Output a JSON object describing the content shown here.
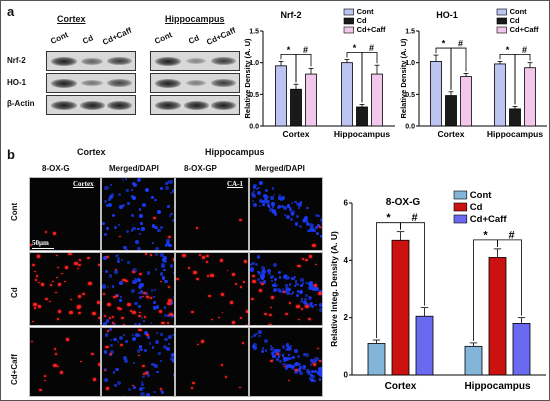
{
  "panel_a": {
    "letter": "a",
    "cortex_header": "Cortex",
    "hippocampus_header": "Hippocampus",
    "lane_labels": [
      "Cont",
      "Cd",
      "Cd+Caff"
    ],
    "blot_rows": [
      "Nrf-2",
      "HO-1",
      "β-Actin"
    ]
  },
  "panel_b": {
    "letter": "b",
    "cortex_header": "Cortex",
    "hippocampus_header": "Hippocampus",
    "column_labels": [
      "8-OX-G",
      "Merged/DAPI",
      "8-OX-GP",
      "Merged/DAPI"
    ],
    "row_labels": [
      "Cont",
      "Cd",
      "Cd+Caff"
    ],
    "region_tag_cortex": "Cortex",
    "region_tag_ca1": "CA-1",
    "scale_label": "50μm"
  },
  "chart_data": [
    {
      "type": "bar",
      "title": "Nrf-2",
      "ylabel": "Relative Density (A. U)",
      "categories": [
        "Cortex",
        "Hippocampus"
      ],
      "ylim": [
        0,
        1.5
      ],
      "yticks": [
        "0.0",
        "0.5",
        "1.0",
        "1.5"
      ],
      "series": [
        {
          "name": "Cont",
          "values": [
            0.95,
            1.0
          ],
          "errors": [
            0.07,
            0.05
          ]
        },
        {
          "name": "Cd",
          "values": [
            0.58,
            0.3
          ],
          "errors": [
            0.08,
            0.04
          ]
        },
        {
          "name": "Cd+Caff",
          "values": [
            0.82,
            0.82
          ],
          "errors": [
            0.09,
            0.14
          ]
        }
      ],
      "significance": [
        "*",
        "#"
      ],
      "legend_position": "top-right"
    },
    {
      "type": "bar",
      "title": "HO-1",
      "ylabel": "Relative Density (A. U)",
      "categories": [
        "Cortex",
        "Hippocampus"
      ],
      "ylim": [
        0,
        1.5
      ],
      "yticks": [
        "0.0",
        "0.5",
        "1.0",
        "1.5"
      ],
      "series": [
        {
          "name": "Cont",
          "values": [
            1.02,
            0.98
          ],
          "errors": [
            0.1,
            0.04
          ]
        },
        {
          "name": "Cd",
          "values": [
            0.48,
            0.27
          ],
          "errors": [
            0.06,
            0.04
          ]
        },
        {
          "name": "Cd+Caff",
          "values": [
            0.78,
            0.92
          ],
          "errors": [
            0.05,
            0.08
          ]
        }
      ],
      "significance": [
        "*",
        "#"
      ],
      "legend_position": "top-right"
    },
    {
      "type": "bar",
      "title": "8-OX-G",
      "ylabel": "Relative Integ. Density (A. U)",
      "categories": [
        "Cortex",
        "Hippocampus"
      ],
      "ylim": [
        0,
        6
      ],
      "yticks": [
        "0",
        "2",
        "4",
        "6"
      ],
      "series": [
        {
          "name": "Cont",
          "values": [
            1.1,
            1.0
          ],
          "errors": [
            0.12,
            0.12
          ]
        },
        {
          "name": "Cd",
          "values": [
            4.7,
            4.1
          ],
          "errors": [
            0.3,
            0.3
          ]
        },
        {
          "name": "Cd+Caff",
          "values": [
            2.05,
            1.8
          ],
          "errors": [
            0.3,
            0.2
          ]
        }
      ],
      "significance": [
        "*",
        "#"
      ],
      "legend_position": "top-right"
    }
  ],
  "colors": {
    "Cont": "#bcc4f2",
    "Cd": "#1a1a1a",
    "Cd+Caff": "#f3c6ec",
    "Cont_b": "#82b5d8",
    "Cd_b": "#cc1111",
    "Cd+Caff_b": "#6a6af0",
    "nucleus": "#1a3cff",
    "signal": "#ff2020"
  }
}
